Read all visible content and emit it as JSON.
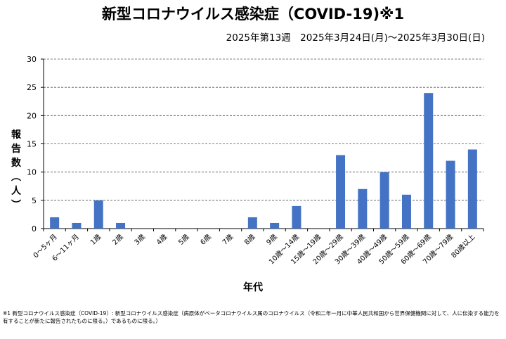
{
  "title": "新型コロナウイルス感染症（COVID-19)※1",
  "subtitle": "2025年第13週　2025年3月24日(月)～2025年3月30日(日)",
  "footnote": "※1 新型コロナウイルス感染症（COVID-19）: 新型コロナウイルス感染症（病原体がベータコロナウイルス属のコロナウイルス（令和二年一月に中華人民共和国から世界保健機関に対して、人に伝染する能力を有することが新たに報告されたものに限る。）であるものに限る。）",
  "colors": {
    "bar": "#4472C4",
    "grid": "#555555",
    "axis": "#000000"
  },
  "chart_data": {
    "type": "bar",
    "title": "新型コロナウイルス感染症（COVID-19)※1",
    "xlabel": "年代",
    "ylabel": "報告数（人）",
    "ylim": [
      0,
      30
    ],
    "yticks": [
      0,
      5,
      10,
      15,
      20,
      25,
      30
    ],
    "grid": true,
    "categories": [
      "0～5ヶ月",
      "6～11ヶ月",
      "1歳",
      "2歳",
      "3歳",
      "4歳",
      "5歳",
      "6歳",
      "7歳",
      "8歳",
      "9歳",
      "10歳～14歳",
      "15歳～19歳",
      "20歳～29歳",
      "30歳～39歳",
      "40歳～49歳",
      "50歳～59歳",
      "60歳～69歳",
      "70歳～79歳",
      "80歳以上"
    ],
    "values": [
      2,
      1,
      5,
      1,
      0,
      0,
      0,
      0,
      0,
      2,
      1,
      4,
      0,
      13,
      7,
      10,
      6,
      24,
      12,
      14
    ]
  }
}
